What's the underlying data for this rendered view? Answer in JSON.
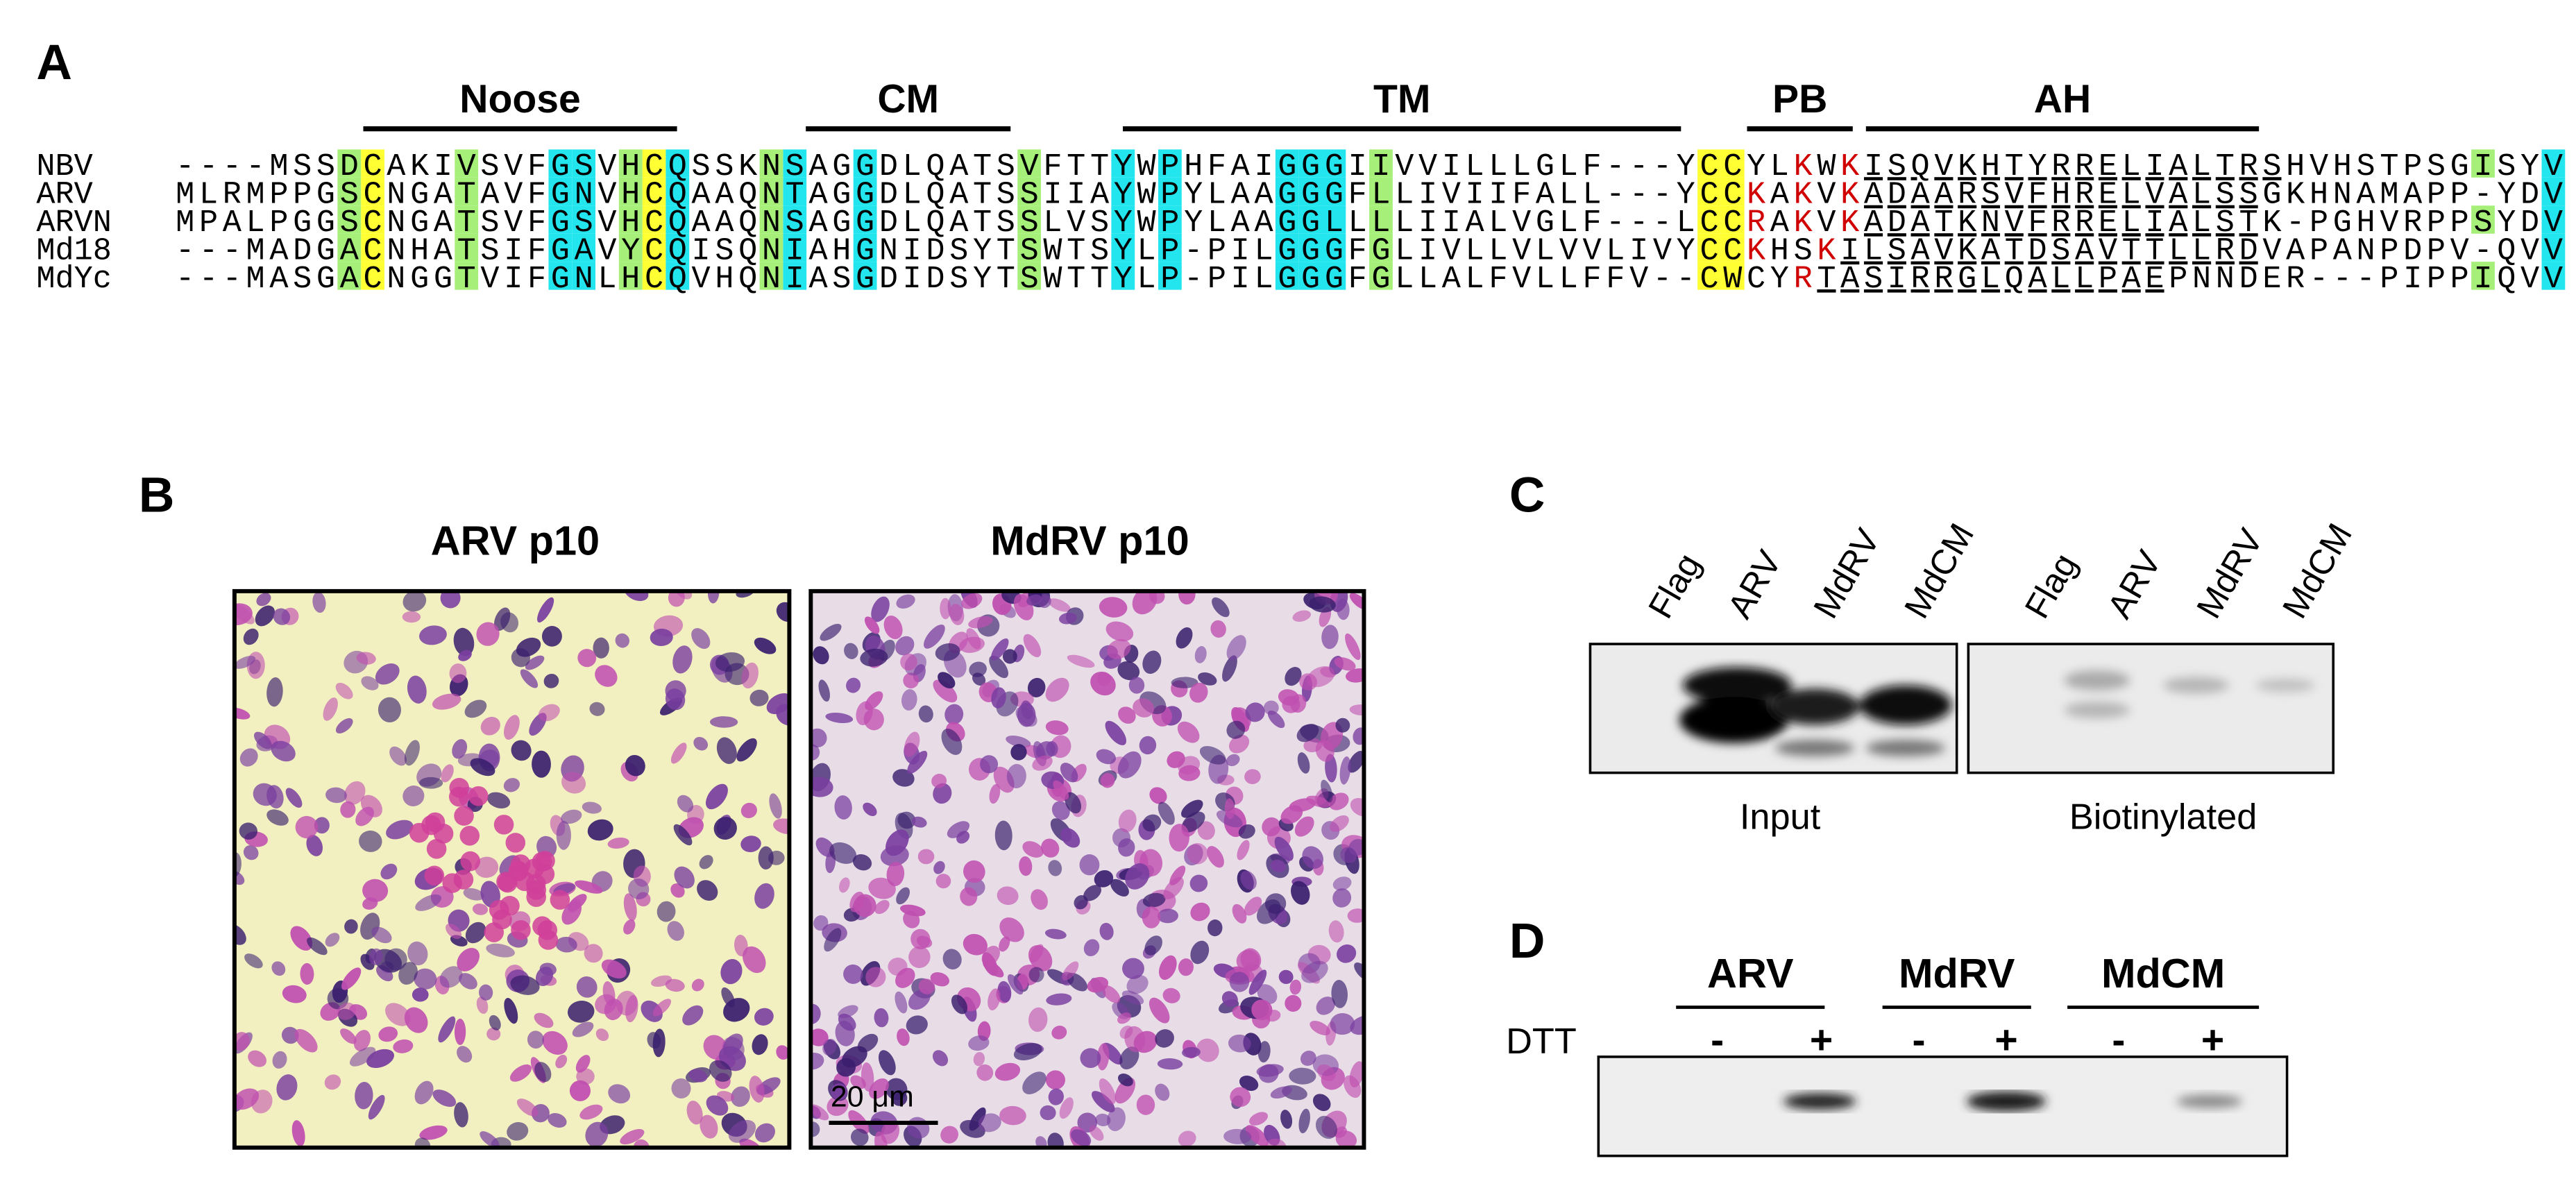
{
  "panels": {
    "a": {
      "label": "A",
      "regions": [
        "Noose",
        "CM",
        "TM",
        "PB",
        "AH"
      ],
      "alignment": [
        {
          "name": "NBV",
          "sequence": "----MSSDCAKIVSVFGSVHCQSSKNSAGGDLQATSVFTTYWPHFAIGGGIIVVILLLGLF---YCCYLKWKISQVKHTYRRELIALTRSHVHSTPSGISYV"
        },
        {
          "name": "ARV",
          "sequence": "MLRMPPGSCNGATAVFGNVHCQAAQNTAGGDLQATSSIIAYWPYLAAGGGFLLIVIIFALL---YCCKAKVKADAARSVFHRELVALSSGKHNAMAPP-YDV"
        },
        {
          "name": "ARVN",
          "sequence": "MPALPGGSCNGATSVFGSVHCQAAQNSAGGDLQATSSLVSYWPYLAAGGLLLLIIALVGLF---LCCRAKVKADATKNVFRRELIALSTK-PGHVRPPSYDV"
        },
        {
          "name": "Md18",
          "sequence": "---MADGACNHATSIFGAVYCQISQNIAHGNIDSYTSWTSYLP-PILGGGFGLIVLLVLVVLIVYCCKHSKILSAVKATDSAVTTLLRDVAPANPDPV-QVV"
        },
        {
          "name": "MdYc",
          "sequence": "---MASGACNGGTVIFGNLHCQVHQNIASGDIDSYTSWTTYLP-PILGGGFGLLALFVLLFFV--CWCYRTASIRRGLQALLPAEPNNDER---PIPPIQVV"
        }
      ]
    },
    "b": {
      "label": "B",
      "titles": [
        "ARV p10",
        "MdRV p10"
      ],
      "scale_bar": "20 μm"
    },
    "c": {
      "label": "C",
      "blots": [
        {
          "label": "Input",
          "lanes": [
            "Flag",
            "ARV",
            "MdRV",
            "MdCM"
          ]
        },
        {
          "label": "Biotinylated",
          "lanes": [
            "Flag",
            "ARV",
            "MdRV",
            "MdCM"
          ]
        }
      ]
    },
    "d": {
      "label": "D",
      "groups": [
        "ARV",
        "MdRV",
        "MdCM"
      ],
      "treatment": "DTT",
      "conditions": [
        "-",
        "+",
        "-",
        "+",
        "-",
        "+"
      ]
    }
  }
}
